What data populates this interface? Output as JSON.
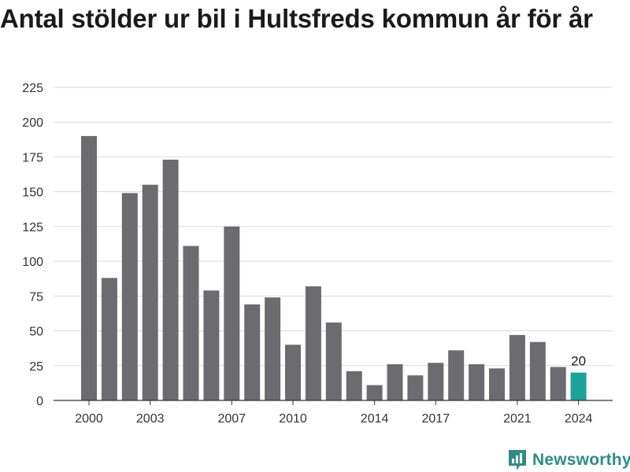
{
  "title": "Antal stölder ur bil i Hultsfreds kommun år för år",
  "brand": {
    "name": "Newsworthy",
    "icon": "newsworthy-chart-icon",
    "color": "#2c8d86"
  },
  "chart_data": {
    "type": "bar",
    "categories": [
      "2000",
      "2001",
      "2002",
      "2003",
      "2004",
      "2005",
      "2006",
      "2007",
      "2008",
      "2009",
      "2010",
      "2011",
      "2012",
      "2013",
      "2014",
      "2015",
      "2016",
      "2017",
      "2018",
      "2019",
      "2020",
      "2021",
      "2022",
      "2023",
      "2024"
    ],
    "values": [
      190,
      88,
      149,
      155,
      173,
      111,
      79,
      125,
      69,
      74,
      40,
      82,
      56,
      21,
      11,
      26,
      18,
      27,
      36,
      26,
      23,
      47,
      42,
      24,
      20
    ],
    "x_tick_labels": [
      "2000",
      "2003",
      "2007",
      "2010",
      "2014",
      "2017",
      "2021",
      "2024"
    ],
    "y_ticks": [
      0,
      25,
      50,
      75,
      100,
      125,
      150,
      175,
      200,
      225
    ],
    "ylim": [
      0,
      225
    ],
    "data_labels": [
      {
        "category": "2024",
        "text": "20"
      }
    ],
    "highlight_category": "2024",
    "bar_color": "#6b6b70",
    "highlight_color": "#1aa39a",
    "grid": true,
    "xlabel": "",
    "ylabel": ""
  }
}
